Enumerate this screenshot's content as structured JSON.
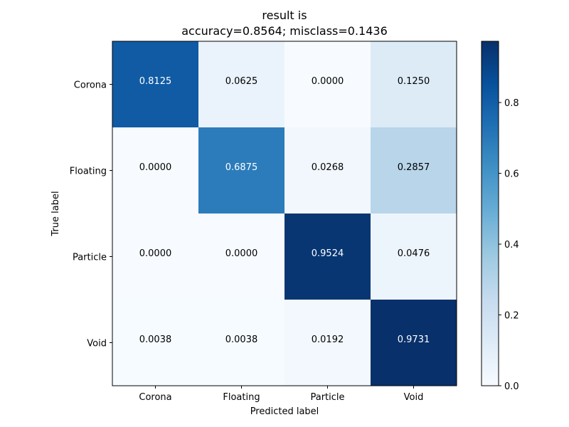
{
  "chart_data": {
    "type": "heatmap",
    "title_line1": "result is",
    "title_line2": "accuracy=0.8564; misclass=0.1436",
    "xlabel": "Predicted label",
    "ylabel": "True label",
    "x_categories": [
      "Corona",
      "Floating",
      "Particle",
      "Void"
    ],
    "y_categories": [
      "Corona",
      "Floating",
      "Particle",
      "Void"
    ],
    "values": [
      [
        0.8125,
        0.0625,
        0.0,
        0.125
      ],
      [
        0.0,
        0.6875,
        0.0268,
        0.2857
      ],
      [
        0.0,
        0.0,
        0.9524,
        0.0476
      ],
      [
        0.0038,
        0.0038,
        0.0192,
        0.9731
      ]
    ],
    "value_labels": [
      [
        "0.8125",
        "0.0625",
        "0.0000",
        "0.1250"
      ],
      [
        "0.0000",
        "0.6875",
        "0.0268",
        "0.2857"
      ],
      [
        "0.0000",
        "0.0000",
        "0.9524",
        "0.0476"
      ],
      [
        "0.0038",
        "0.0038",
        "0.0192",
        "0.9731"
      ]
    ],
    "colormap": "Blues",
    "colorbar": {
      "range": [
        0,
        0.9731
      ],
      "ticks": [
        0.0,
        0.2,
        0.4,
        0.6,
        0.8
      ],
      "tick_labels": [
        "0.0",
        "0.2",
        "0.4",
        "0.6",
        "0.8"
      ]
    },
    "text_color_dark": "#000000",
    "text_color_light": "#ffffff",
    "grid": false
  }
}
